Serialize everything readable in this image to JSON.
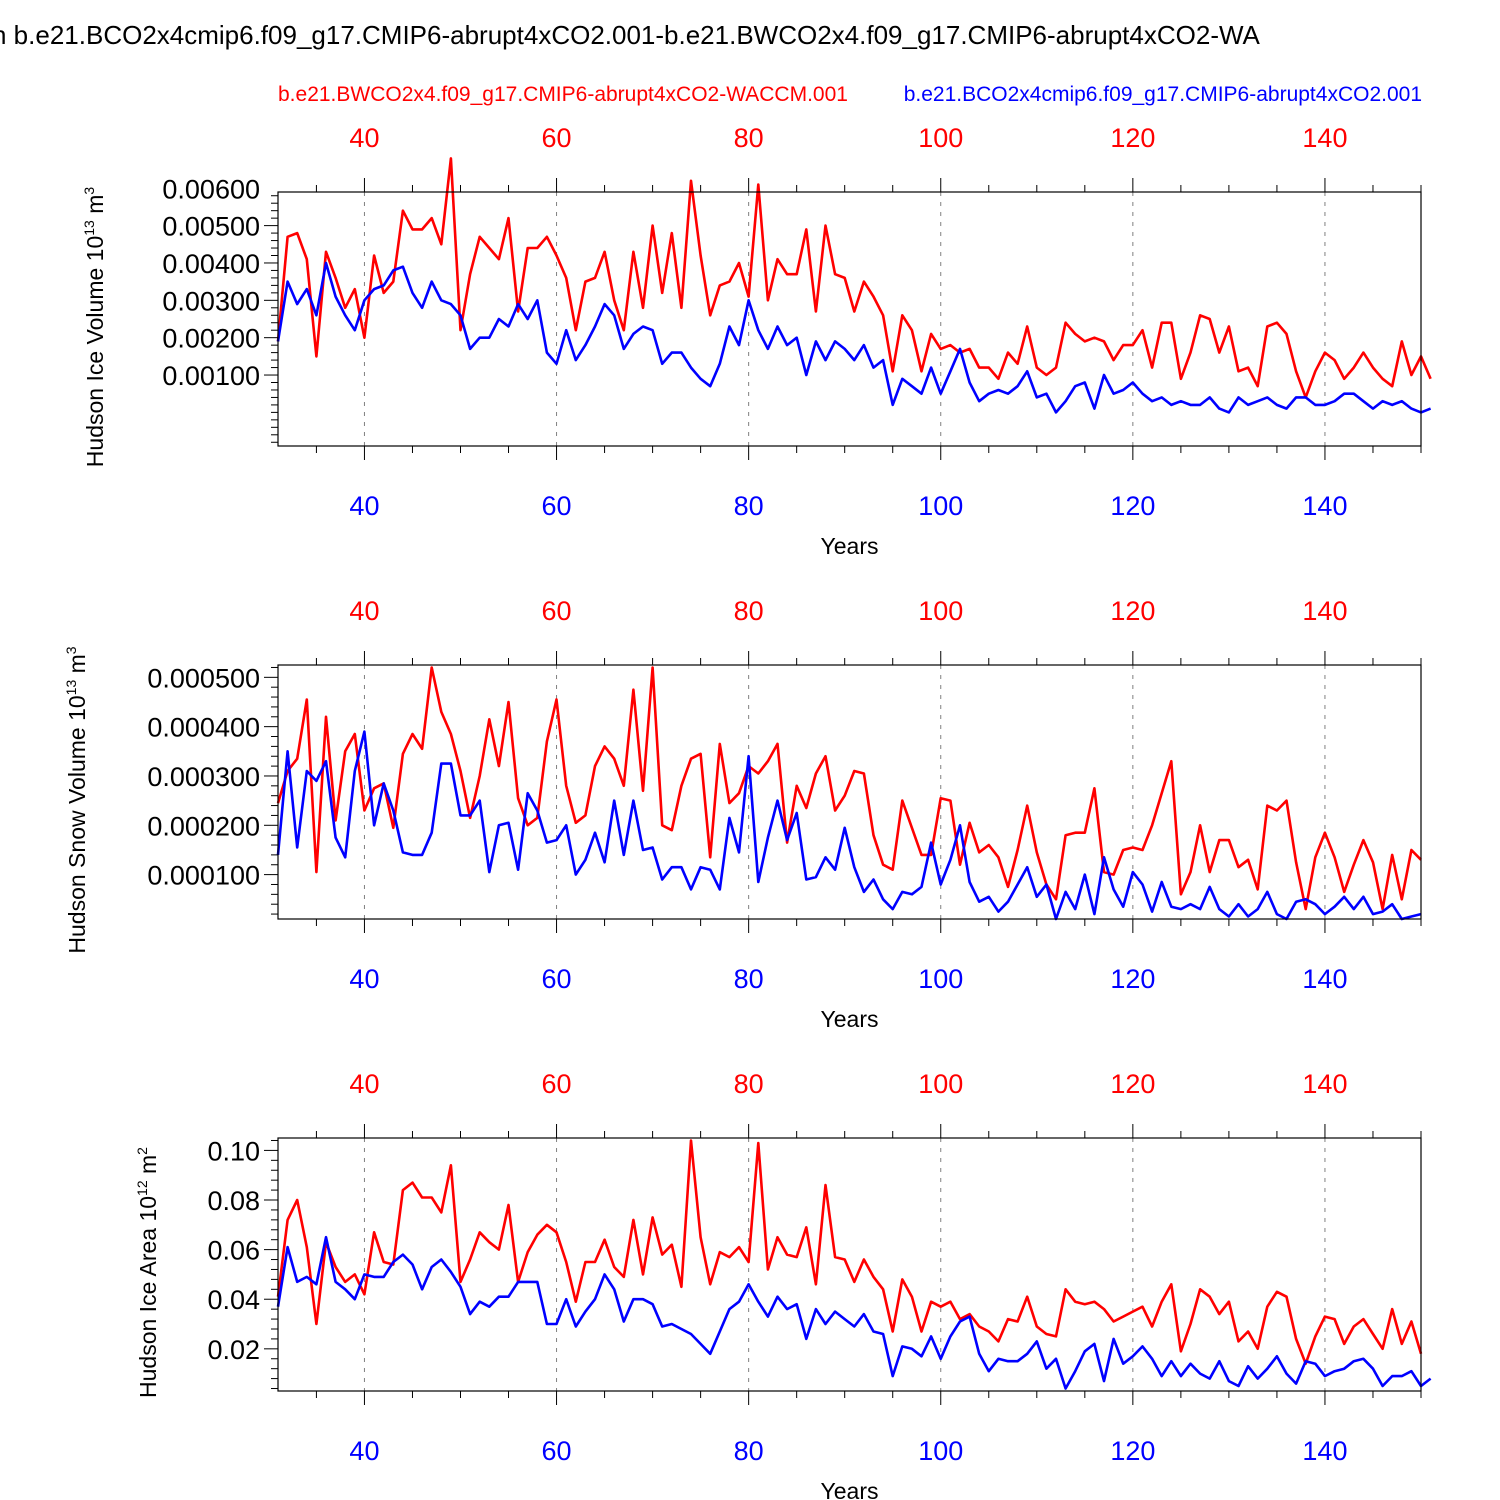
{
  "page_title": "n b.e21.BCO2x4cmip6.f09_g17.CMIP6-abrupt4xCO2.001-b.e21.BWCO2x4.f09_g17.CMIP6-abrupt4xCO2-WA",
  "legend": {
    "red_run": "b.e21.BWCO2x4.f09_g17.CMIP6-abrupt4xCO2-WACCM.001",
    "blue_run": "b.e21.BCO2x4cmip6.f09_g17.CMIP6-abrupt4xCO2.001"
  },
  "colors": {
    "red": "#ff0000",
    "blue": "#0000ff",
    "axis": "#000000",
    "grid": "#808080"
  },
  "chart_data": [
    {
      "type": "line",
      "ylabel": "Hudson Ice Volume 10",
      "ylabel_exp": "13",
      "ylabel_unit": " m",
      "ylabel_unit_exp": "3",
      "xlabel": "Years",
      "xlim": [
        31,
        150
      ],
      "ylim": [
        -0.0009,
        0.0059
      ],
      "yticks": [
        0.001,
        0.002,
        0.003,
        0.004,
        0.005,
        0.006
      ],
      "ytick_labels": [
        "0.00100",
        "0.00200",
        "0.00300",
        "0.00400",
        "0.00500",
        "0.00600"
      ],
      "xticks": [
        40,
        60,
        80,
        100,
        120,
        140
      ],
      "xtick_labels": [
        "40",
        "60",
        "80",
        "100",
        "120",
        "140"
      ],
      "x_start": 31,
      "series": [
        {
          "name": "red",
          "values": [
            0.0019,
            0.0047,
            0.0048,
            0.0041,
            0.0015,
            0.0043,
            0.0036,
            0.0028,
            0.0033,
            0.002,
            0.0042,
            0.0032,
            0.0035,
            0.0054,
            0.0049,
            0.0049,
            0.0052,
            0.0045,
            0.0068,
            0.0022,
            0.0037,
            0.0047,
            0.0044,
            0.0041,
            0.0052,
            0.0027,
            0.0044,
            0.0044,
            0.0047,
            0.0042,
            0.0036,
            0.0022,
            0.0035,
            0.0036,
            0.0043,
            0.003,
            0.0022,
            0.0043,
            0.0028,
            0.005,
            0.0032,
            0.0048,
            0.0028,
            0.0062,
            0.0042,
            0.0026,
            0.0034,
            0.0035,
            0.004,
            0.0031,
            0.0061,
            0.003,
            0.0041,
            0.0037,
            0.0037,
            0.0049,
            0.0027,
            0.005,
            0.0037,
            0.0036,
            0.0027,
            0.0035,
            0.0031,
            0.0026,
            0.0011,
            0.0026,
            0.0022,
            0.0011,
            0.0021,
            0.0017,
            0.0018,
            0.0016,
            0.0017,
            0.0012,
            0.0012,
            0.0009,
            0.0016,
            0.0013,
            0.0023,
            0.0012,
            0.001,
            0.0012,
            0.0024,
            0.0021,
            0.0019,
            0.002,
            0.0019,
            0.0014,
            0.0018,
            0.0018,
            0.0022,
            0.0012,
            0.0024,
            0.0024,
            0.0009,
            0.0016,
            0.0026,
            0.0025,
            0.0016,
            0.0023,
            0.0011,
            0.0012,
            0.0007,
            0.0023,
            0.0024,
            0.0021,
            0.0011,
            0.0004,
            0.0011,
            0.0016,
            0.0014,
            0.0009,
            0.0012,
            0.0016,
            0.0012,
            0.0009,
            0.0007,
            0.0019,
            0.001,
            0.0015,
            0.0009
          ]
        },
        {
          "name": "blue",
          "values": [
            0.0019,
            0.0035,
            0.0029,
            0.0033,
            0.0026,
            0.004,
            0.0031,
            0.0026,
            0.0022,
            0.003,
            0.0033,
            0.0034,
            0.0038,
            0.0039,
            0.0032,
            0.0028,
            0.0035,
            0.003,
            0.0029,
            0.0026,
            0.0017,
            0.002,
            0.002,
            0.0025,
            0.0023,
            0.0029,
            0.0025,
            0.003,
            0.0016,
            0.0013,
            0.0022,
            0.0014,
            0.0018,
            0.0023,
            0.0029,
            0.0026,
            0.0017,
            0.0021,
            0.0023,
            0.0022,
            0.0013,
            0.0016,
            0.0016,
            0.0012,
            0.0009,
            0.0007,
            0.0013,
            0.0023,
            0.0018,
            0.003,
            0.0022,
            0.0017,
            0.0023,
            0.0018,
            0.002,
            0.001,
            0.0019,
            0.0014,
            0.0019,
            0.0017,
            0.0014,
            0.0018,
            0.0012,
            0.0014,
            0.0002,
            0.0009,
            0.0007,
            0.0005,
            0.0012,
            0.0005,
            0.0011,
            0.0017,
            0.0008,
            0.0003,
            0.0005,
            0.0006,
            0.0005,
            0.0007,
            0.0011,
            0.0004,
            0.0005,
            0.0,
            0.0003,
            0.0007,
            0.0008,
            0.0001,
            0.001,
            0.0005,
            0.0006,
            0.0008,
            0.0005,
            0.0003,
            0.0004,
            0.0002,
            0.0003,
            0.0002,
            0.0002,
            0.0004,
            0.0001,
            0.0,
            0.0004,
            0.0002,
            0.0003,
            0.0004,
            0.0002,
            0.0001,
            0.0004,
            0.0004,
            0.0002,
            0.0002,
            0.0003,
            0.0005,
            0.0005,
            0.0003,
            0.0001,
            0.0003,
            0.0002,
            0.0003,
            0.0001,
            0.0,
            0.0001
          ]
        }
      ]
    },
    {
      "type": "line",
      "ylabel": "Hudson Snow Volume 10",
      "ylabel_exp": "13",
      "ylabel_unit": " m",
      "ylabel_unit_exp": "3",
      "xlabel": "Years",
      "xlim": [
        31,
        150
      ],
      "ylim": [
        1e-05,
        0.000525
      ],
      "yticks": [
        0.0001,
        0.0002,
        0.0003,
        0.0004,
        0.0005
      ],
      "ytick_labels": [
        "0.000100",
        "0.000200",
        "0.000300",
        "0.000400",
        "0.000500"
      ],
      "xticks": [
        40,
        60,
        80,
        100,
        120,
        140
      ],
      "xtick_labels": [
        "40",
        "60",
        "80",
        "100",
        "120",
        "140"
      ],
      "x_start": 31,
      "series": [
        {
          "name": "red",
          "values": [
            0.000245,
            0.00031,
            0.000335,
            0.000455,
            0.000105,
            0.00042,
            0.00021,
            0.00035,
            0.000385,
            0.00023,
            0.000275,
            0.000285,
            0.000195,
            0.000345,
            0.000385,
            0.000355,
            0.00052,
            0.00043,
            0.000385,
            0.00031,
            0.000215,
            0.0003,
            0.000415,
            0.00032,
            0.00045,
            0.000255,
            0.0002,
            0.000215,
            0.00037,
            0.000455,
            0.00028,
            0.000205,
            0.00022,
            0.00032,
            0.00036,
            0.000335,
            0.00028,
            0.000475,
            0.00027,
            0.00052,
            0.0002,
            0.00019,
            0.00028,
            0.000335,
            0.000345,
            0.000135,
            0.000365,
            0.000245,
            0.000265,
            0.00032,
            0.000305,
            0.00033,
            0.000365,
            0.000165,
            0.00028,
            0.000235,
            0.000305,
            0.00034,
            0.00023,
            0.00026,
            0.00031,
            0.000305,
            0.00018,
            0.00012,
            0.00011,
            0.00025,
            0.000195,
            0.00014,
            0.00014,
            0.000255,
            0.00025,
            0.00012,
            0.000205,
            0.000145,
            0.00016,
            0.000135,
            7.5e-05,
            0.00015,
            0.00024,
            0.000145,
            8e-05,
            5e-05,
            0.00018,
            0.000185,
            0.000185,
            0.000275,
            0.000105,
            0.0001,
            0.00015,
            0.000155,
            0.00015,
            0.0002,
            0.000265,
            0.00033,
            6e-05,
            0.000105,
            0.0002,
            0.000105,
            0.00017,
            0.00017,
            0.000115,
            0.00013,
            7e-05,
            0.00024,
            0.00023,
            0.00025,
            0.000125,
            3e-05,
            0.000135,
            0.000185,
            0.000135,
            6.5e-05,
            0.00012,
            0.00017,
            0.000125,
            3e-05,
            0.00014,
            5e-05,
            0.00015,
            0.00013
          ]
        },
        {
          "name": "blue",
          "values": [
            0.00014,
            0.00035,
            0.000155,
            0.00031,
            0.00029,
            0.00033,
            0.000175,
            0.000135,
            0.00031,
            0.00039,
            0.0002,
            0.000285,
            0.00023,
            0.000145,
            0.00014,
            0.00014,
            0.000185,
            0.000325,
            0.000325,
            0.00022,
            0.00022,
            0.00025,
            0.000105,
            0.0002,
            0.000205,
            0.00011,
            0.000265,
            0.00023,
            0.000165,
            0.00017,
            0.0002,
            0.0001,
            0.00013,
            0.000185,
            0.000125,
            0.00025,
            0.00014,
            0.00025,
            0.00015,
            0.000155,
            9e-05,
            0.000115,
            0.000115,
            7e-05,
            0.000115,
            0.00011,
            7e-05,
            0.000215,
            0.000145,
            0.00034,
            8.5e-05,
            0.000175,
            0.00025,
            0.00017,
            0.000225,
            9e-05,
            9.5e-05,
            0.000135,
            0.00011,
            0.000195,
            0.000115,
            6.5e-05,
            9e-05,
            5e-05,
            3e-05,
            6.5e-05,
            6e-05,
            7.5e-05,
            0.000165,
            8e-05,
            0.00013,
            0.0002,
            8.5e-05,
            4.5e-05,
            5.5e-05,
            2.5e-05,
            4.5e-05,
            8e-05,
            0.000115,
            5.5e-05,
            8e-05,
            1e-05,
            6.5e-05,
            3e-05,
            0.0001,
            2e-05,
            0.000135,
            7e-05,
            3.5e-05,
            0.000105,
            8e-05,
            2.5e-05,
            8.5e-05,
            3.5e-05,
            3e-05,
            4e-05,
            3e-05,
            7.5e-05,
            3e-05,
            1.5e-05,
            4e-05,
            1.5e-05,
            3e-05,
            6.5e-05,
            2e-05,
            1e-05,
            4.5e-05,
            5e-05,
            4e-05,
            2e-05,
            3.5e-05,
            5.5e-05,
            3e-05,
            5.5e-05,
            2e-05,
            2.5e-05,
            4e-05,
            1e-05,
            1.5e-05,
            2e-05
          ]
        }
      ]
    },
    {
      "type": "line",
      "ylabel": "Hudson Ice Area 10",
      "ylabel_exp": "12",
      "ylabel_unit": " m",
      "ylabel_unit_exp": "2",
      "xlabel": "Years",
      "xlim": [
        31,
        150
      ],
      "ylim": [
        0.003,
        0.105
      ],
      "yticks": [
        0.02,
        0.04,
        0.06,
        0.08,
        0.1
      ],
      "ytick_labels": [
        "0.02",
        "0.04",
        "0.06",
        "0.08",
        "0.10"
      ],
      "xticks": [
        40,
        60,
        80,
        100,
        120,
        140
      ],
      "xtick_labels": [
        "40",
        "60",
        "80",
        "100",
        "120",
        "140"
      ],
      "x_start": 31,
      "series": [
        {
          "name": "red",
          "values": [
            0.041,
            0.072,
            0.08,
            0.061,
            0.03,
            0.063,
            0.053,
            0.047,
            0.05,
            0.042,
            0.067,
            0.055,
            0.054,
            0.084,
            0.087,
            0.081,
            0.081,
            0.075,
            0.094,
            0.047,
            0.056,
            0.067,
            0.063,
            0.06,
            0.078,
            0.047,
            0.059,
            0.066,
            0.07,
            0.067,
            0.055,
            0.039,
            0.055,
            0.055,
            0.064,
            0.053,
            0.049,
            0.072,
            0.05,
            0.073,
            0.058,
            0.062,
            0.045,
            0.104,
            0.065,
            0.046,
            0.059,
            0.057,
            0.061,
            0.055,
            0.103,
            0.052,
            0.065,
            0.058,
            0.057,
            0.069,
            0.046,
            0.086,
            0.057,
            0.056,
            0.047,
            0.056,
            0.049,
            0.044,
            0.027,
            0.048,
            0.041,
            0.027,
            0.039,
            0.037,
            0.039,
            0.032,
            0.034,
            0.029,
            0.027,
            0.023,
            0.032,
            0.031,
            0.041,
            0.029,
            0.026,
            0.025,
            0.044,
            0.039,
            0.038,
            0.039,
            0.036,
            0.031,
            0.033,
            0.035,
            0.037,
            0.029,
            0.039,
            0.046,
            0.019,
            0.03,
            0.044,
            0.041,
            0.034,
            0.039,
            0.023,
            0.027,
            0.02,
            0.037,
            0.043,
            0.041,
            0.024,
            0.014,
            0.025,
            0.033,
            0.032,
            0.022,
            0.029,
            0.032,
            0.026,
            0.02,
            0.036,
            0.022,
            0.031,
            0.018
          ]
        },
        {
          "name": "blue",
          "values": [
            0.037,
            0.061,
            0.047,
            0.049,
            0.046,
            0.065,
            0.047,
            0.044,
            0.04,
            0.05,
            0.049,
            0.049,
            0.055,
            0.058,
            0.054,
            0.044,
            0.053,
            0.056,
            0.051,
            0.045,
            0.034,
            0.039,
            0.037,
            0.041,
            0.041,
            0.047,
            0.047,
            0.047,
            0.03,
            0.03,
            0.04,
            0.029,
            0.035,
            0.04,
            0.05,
            0.044,
            0.031,
            0.04,
            0.04,
            0.038,
            0.029,
            0.03,
            0.028,
            0.026,
            0.022,
            0.018,
            0.027,
            0.036,
            0.039,
            0.046,
            0.039,
            0.033,
            0.041,
            0.036,
            0.038,
            0.024,
            0.036,
            0.03,
            0.035,
            0.032,
            0.029,
            0.034,
            0.027,
            0.026,
            0.009,
            0.021,
            0.02,
            0.017,
            0.025,
            0.016,
            0.025,
            0.031,
            0.033,
            0.018,
            0.011,
            0.016,
            0.015,
            0.015,
            0.018,
            0.023,
            0.012,
            0.016,
            0.004,
            0.011,
            0.019,
            0.022,
            0.007,
            0.024,
            0.014,
            0.017,
            0.021,
            0.016,
            0.009,
            0.015,
            0.009,
            0.014,
            0.01,
            0.008,
            0.015,
            0.007,
            0.005,
            0.013,
            0.008,
            0.012,
            0.017,
            0.01,
            0.006,
            0.015,
            0.014,
            0.009,
            0.011,
            0.012,
            0.015,
            0.016,
            0.012,
            0.005,
            0.009,
            0.009,
            0.011,
            0.005,
            0.008
          ]
        }
      ]
    }
  ]
}
